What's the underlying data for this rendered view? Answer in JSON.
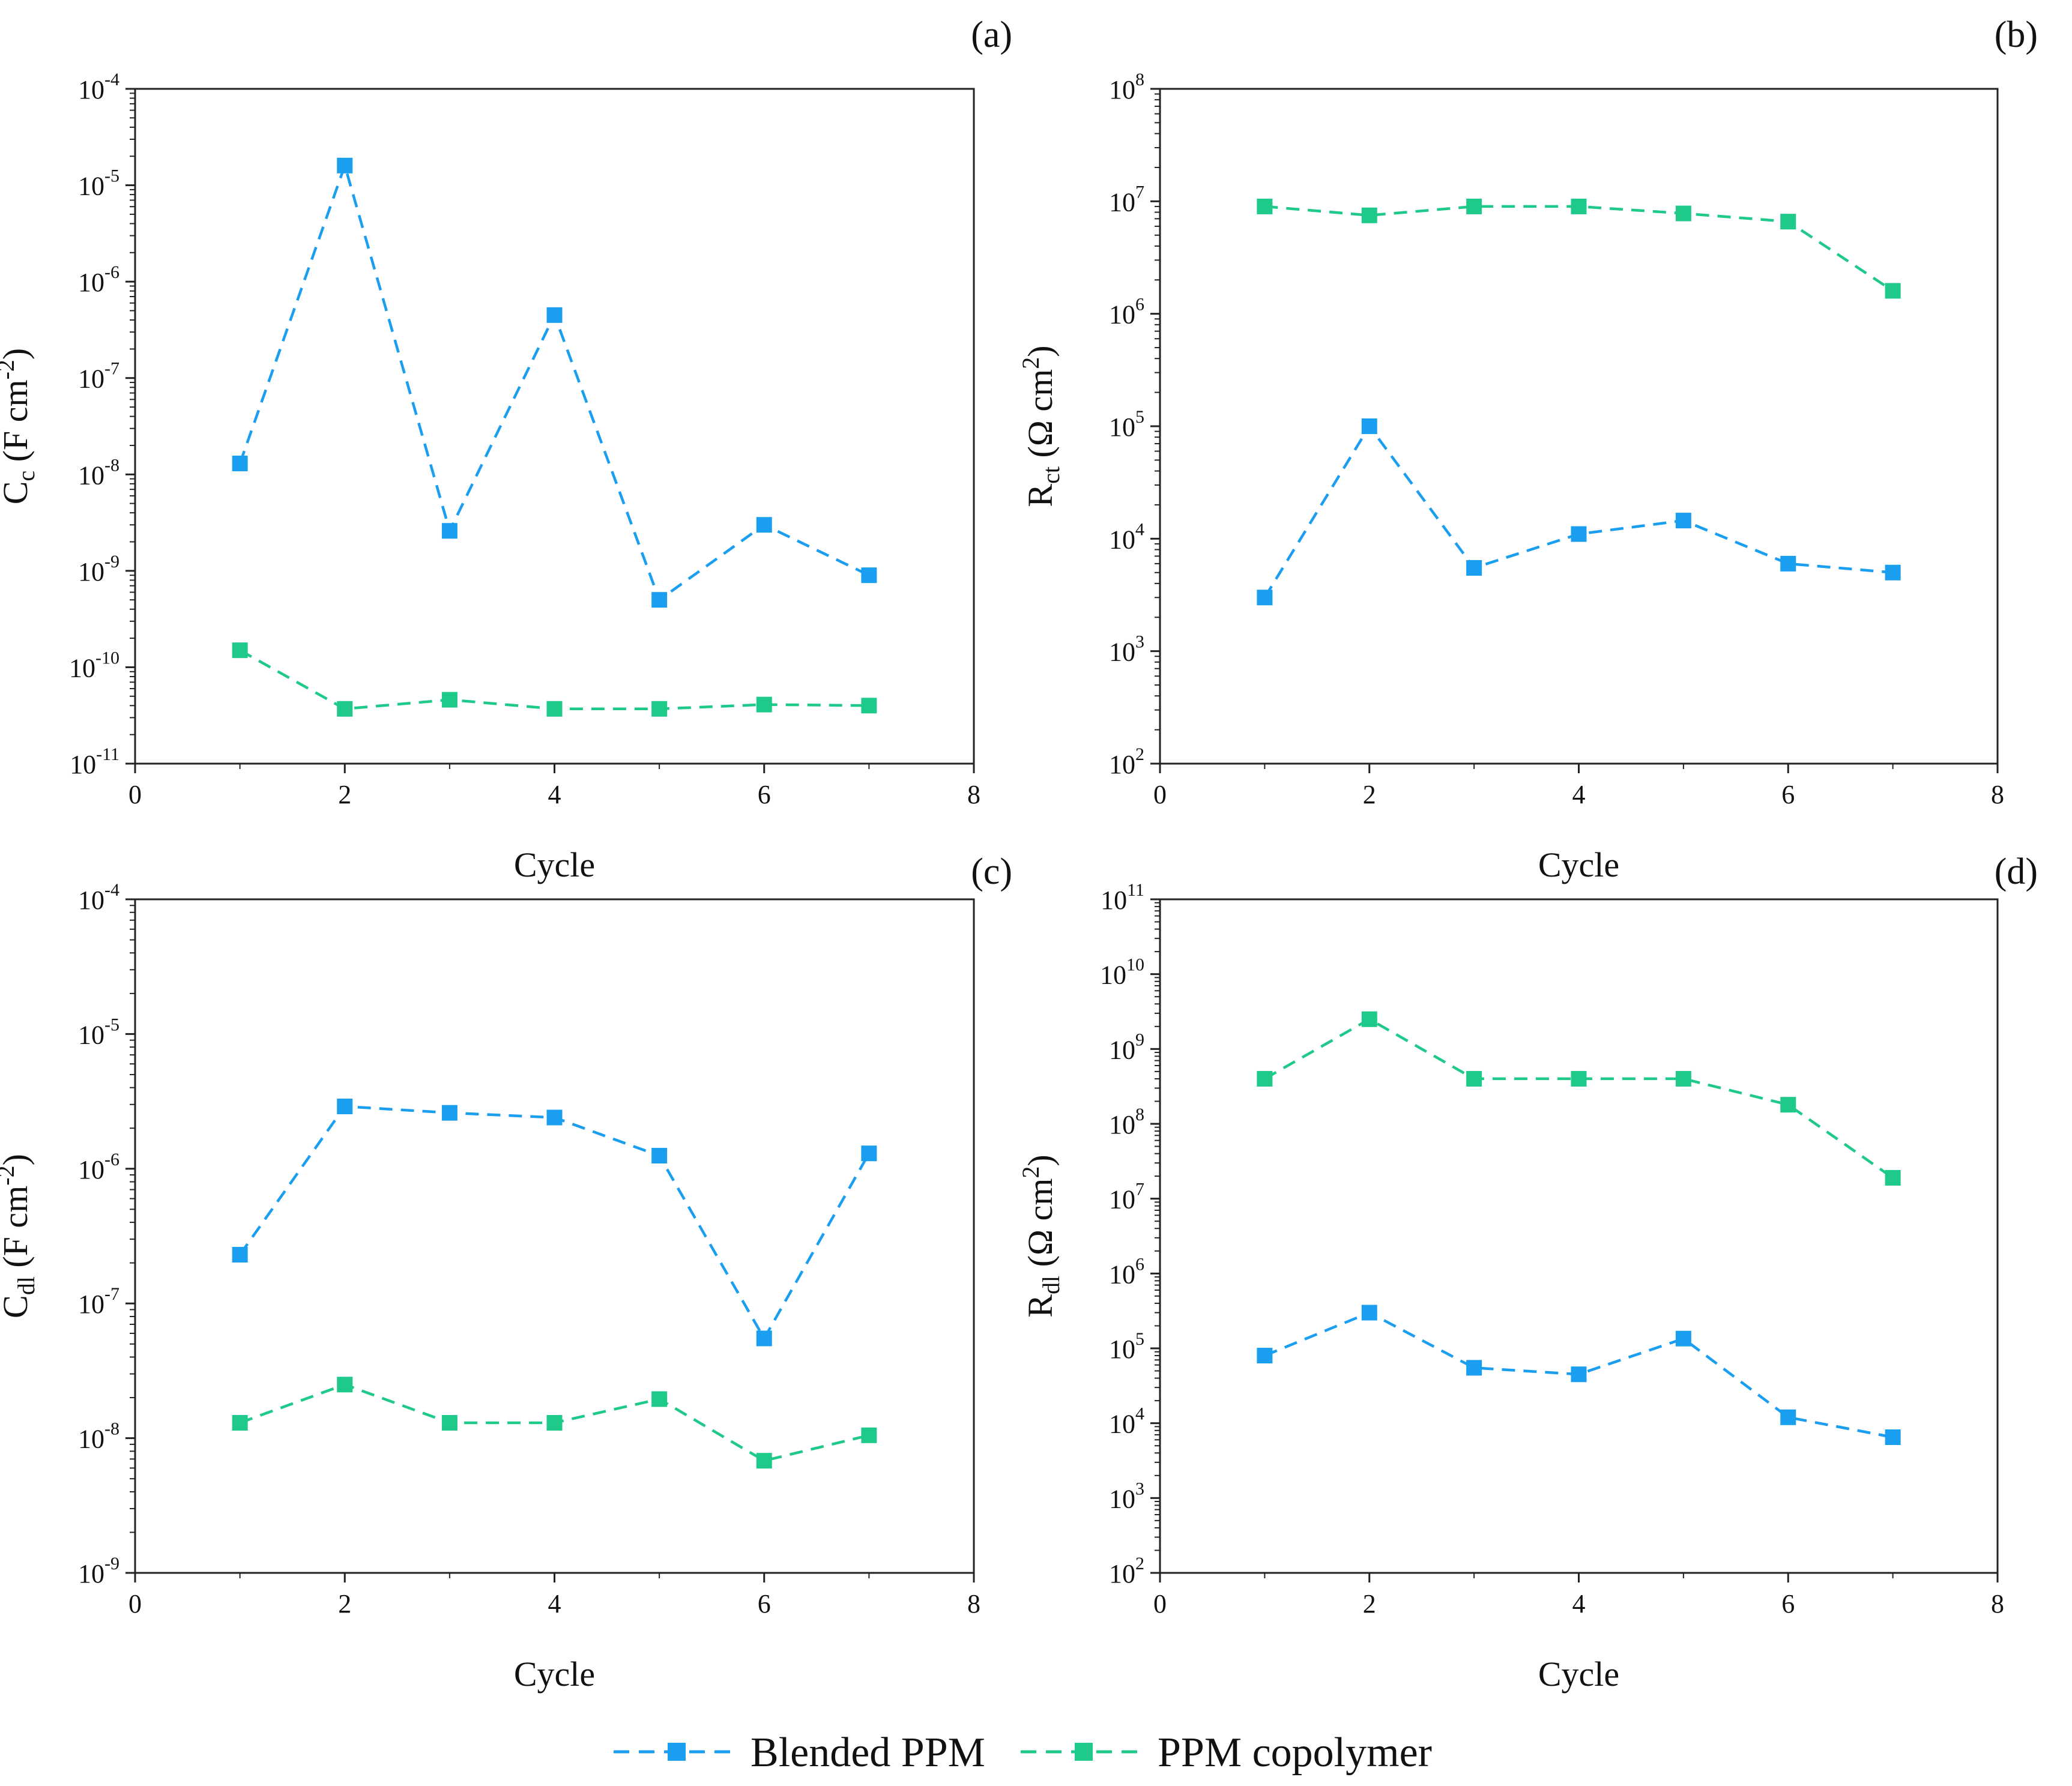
{
  "colors": {
    "blended": "#1a9ef0",
    "copolymer": "#1ec98a",
    "axis": "#222222"
  },
  "legend": {
    "items": [
      "Blended PPM",
      "PPM copolymer"
    ],
    "marker": "square",
    "line": "dashed"
  },
  "chart_data": [
    {
      "panel": "(a)",
      "type": "line",
      "ylabel": {
        "main": "C",
        "sub": "c",
        "unit_open": " (F cm",
        "unit_exp": "-2",
        "unit_close": ")"
      },
      "xlabel": "Cycle",
      "xlim": [
        0,
        8
      ],
      "xticks": [
        0,
        2,
        4,
        6,
        8
      ],
      "yscale": "log",
      "ylim": [
        1e-11,
        0.0001
      ],
      "yticks": [
        {
          "base": "10",
          "exp": "-11"
        },
        {
          "base": "10",
          "exp": "-10"
        },
        {
          "base": "10",
          "exp": "-9"
        },
        {
          "base": "10",
          "exp": "-8"
        },
        {
          "base": "10",
          "exp": "-7"
        },
        {
          "base": "10",
          "exp": "-6"
        },
        {
          "base": "10",
          "exp": "-5"
        },
        {
          "base": "10",
          "exp": "-4"
        }
      ],
      "x": [
        1,
        2,
        3,
        4,
        5,
        6,
        7
      ],
      "series": [
        {
          "name": "Blended PPM",
          "values": [
            1.3e-08,
            1.6e-05,
            2.6e-09,
            4.5e-07,
            5e-10,
            3e-09,
            9e-10
          ]
        },
        {
          "name": "PPM copolymer",
          "values": [
            1.5e-10,
            3.7e-11,
            4.6e-11,
            3.7e-11,
            3.7e-11,
            4.1e-11,
            4e-11
          ]
        }
      ]
    },
    {
      "panel": "(b)",
      "type": "line",
      "ylabel": {
        "main": "R",
        "sub": "ct",
        "unit_open": " (Ω cm",
        "unit_exp": "2",
        "unit_close": ")"
      },
      "xlabel": "Cycle",
      "xlim": [
        0,
        8
      ],
      "xticks": [
        0,
        2,
        4,
        6,
        8
      ],
      "yscale": "log",
      "ylim": [
        100.0,
        100000000.0
      ],
      "yticks": [
        {
          "base": "10",
          "exp": "2"
        },
        {
          "base": "10",
          "exp": "3"
        },
        {
          "base": "10",
          "exp": "4"
        },
        {
          "base": "10",
          "exp": "5"
        },
        {
          "base": "10",
          "exp": "6"
        },
        {
          "base": "10",
          "exp": "7"
        },
        {
          "base": "10",
          "exp": "8"
        }
      ],
      "x": [
        1,
        2,
        3,
        4,
        5,
        6,
        7
      ],
      "series": [
        {
          "name": "Blended PPM",
          "values": [
            3000,
            100000,
            5500,
            11000,
            14500,
            6000,
            5000
          ]
        },
        {
          "name": "PPM copolymer",
          "values": [
            9000000,
            7500000,
            9000000,
            9000000,
            7800000,
            6600000,
            1600000
          ]
        }
      ]
    },
    {
      "panel": "(c)",
      "type": "line",
      "ylabel": {
        "main": "C",
        "sub": "dl",
        "unit_open": " (F cm",
        "unit_exp": "-2",
        "unit_close": ")"
      },
      "xlabel": "Cycle",
      "xlim": [
        0,
        8
      ],
      "xticks": [
        0,
        2,
        4,
        6,
        8
      ],
      "yscale": "log",
      "ylim": [
        1e-09,
        0.0001
      ],
      "yticks": [
        {
          "base": "10",
          "exp": "-9"
        },
        {
          "base": "10",
          "exp": "-8"
        },
        {
          "base": "10",
          "exp": "-7"
        },
        {
          "base": "10",
          "exp": "-6"
        },
        {
          "base": "10",
          "exp": "-5"
        },
        {
          "base": "10",
          "exp": "-4"
        }
      ],
      "x": [
        1,
        2,
        3,
        4,
        5,
        6,
        7
      ],
      "series": [
        {
          "name": "Blended PPM",
          "values": [
            2.3e-07,
            2.9e-06,
            2.6e-06,
            2.4e-06,
            1.25e-06,
            5.5e-08,
            1.3e-06
          ]
        },
        {
          "name": "PPM copolymer",
          "values": [
            1.3e-08,
            2.5e-08,
            1.3e-08,
            1.3e-08,
            1.95e-08,
            6.8e-09,
            1.05e-08
          ]
        }
      ]
    },
    {
      "panel": "(d)",
      "type": "line",
      "ylabel": {
        "main": "R",
        "sub": "dl",
        "unit_open": " (Ω cm",
        "unit_exp": "2",
        "unit_close": ")"
      },
      "xlabel": "Cycle",
      "xlim": [
        0,
        8
      ],
      "xticks": [
        0,
        2,
        4,
        6,
        8
      ],
      "yscale": "log",
      "ylim": [
        100.0,
        100000000000.0
      ],
      "yticks": [
        {
          "base": "10",
          "exp": "2"
        },
        {
          "base": "10",
          "exp": "3"
        },
        {
          "base": "10",
          "exp": "4"
        },
        {
          "base": "10",
          "exp": "5"
        },
        {
          "base": "10",
          "exp": "6"
        },
        {
          "base": "10",
          "exp": "7"
        },
        {
          "base": "10",
          "exp": "8"
        },
        {
          "base": "10",
          "exp": "9"
        },
        {
          "base": "10",
          "exp": "10"
        },
        {
          "base": "10",
          "exp": "11"
        }
      ],
      "x": [
        1,
        2,
        3,
        4,
        5,
        6,
        7
      ],
      "series": [
        {
          "name": "Blended PPM",
          "values": [
            80000,
            300000,
            55000,
            45000,
            135000,
            12000,
            6500
          ]
        },
        {
          "name": "PPM copolymer",
          "values": [
            400000000,
            2500000000,
            400000000,
            400000000,
            400000000,
            180000000,
            19000000
          ]
        }
      ]
    }
  ]
}
